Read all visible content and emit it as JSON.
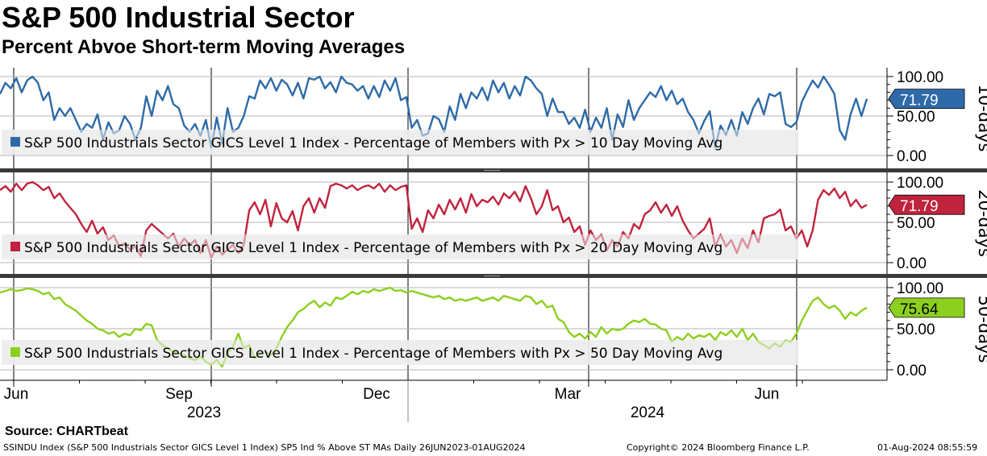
{
  "title": "S&P 500 Industrial Sector",
  "subtitle": "Percent Abvoe Short-term Moving Averages",
  "source": "Source: CHARTbeat",
  "footer": {
    "left": "SSINDU Index (S&P 500 Industrials Sector GICS Level 1 Index) SP5 Ind % Above ST MAs  Daily 26JUN2023-01AUG2024",
    "center": "Copyright© 2024 Bloomberg Finance L.P.",
    "right": "01-Aug-2024 08:55:59"
  },
  "chart_data": {
    "type": "line",
    "x_axis": {
      "range": [
        "2023-06-26",
        "2024-08-01"
      ],
      "months": [
        "Jun",
        "Sep",
        "Dec",
        "Mar",
        "Jun"
      ],
      "years": [
        "2023",
        "2024"
      ]
    },
    "panels": [
      {
        "side_label": "10-days",
        "legend": "S&P 500 Industrials Sector GICS Level 1 Index - Percentage of Members with Px > 10 Day Moving Avg",
        "color": "#2e6aa8",
        "last_value": "71.79",
        "ylim": [
          -5,
          105
        ],
        "yticks": [
          "100.00",
          "50.00",
          "0.00"
        ],
        "values": [
          78,
          92,
          85,
          98,
          80,
          95,
          100,
          92,
          70,
          80,
          45,
          60,
          50,
          60,
          45,
          30,
          40,
          35,
          52,
          20,
          42,
          28,
          32,
          50,
          40,
          20,
          35,
          75,
          50,
          82,
          70,
          88,
          65,
          60,
          38,
          30,
          40,
          25,
          45,
          10,
          48,
          15,
          60,
          30,
          35,
          50,
          75,
          72,
          95,
          85,
          98,
          82,
          96,
          90,
          76,
          92,
          72,
          98,
          96,
          100,
          85,
          93,
          80,
          100,
          92,
          90,
          82,
          88,
          72,
          88,
          74,
          95,
          82,
          98,
          70,
          74,
          35,
          45,
          25,
          28,
          50,
          46,
          30,
          62,
          45,
          78,
          60,
          80,
          72,
          86,
          70,
          95,
          80,
          92,
          72,
          88,
          76,
          100,
          95,
          85,
          78,
          50,
          72,
          55,
          55,
          40,
          48,
          35,
          58,
          30,
          48,
          35,
          60,
          20,
          52,
          36,
          70,
          45,
          60,
          70,
          80,
          74,
          88,
          70,
          82,
          65,
          72,
          55,
          45,
          28,
          44,
          56,
          10,
          38,
          26,
          45,
          25,
          55,
          40,
          60,
          72,
          52,
          78,
          75,
          80,
          40,
          36,
          42,
          68,
          82,
          95,
          86,
          100,
          90,
          78,
          32,
          20,
          52,
          72,
          50,
          71.79
        ]
      },
      {
        "side_label": "20-days",
        "legend": "S&P 500 Industrials Sector GICS Level 1 Index - Percentage of Members with Px > 20 Day Moving Avg",
        "color": "#c0233d",
        "last_value": "71.79",
        "ylim": [
          -5,
          105
        ],
        "yticks": [
          "100.00",
          "50.00",
          "0.00"
        ],
        "values": [
          90,
          95,
          88,
          98,
          90,
          98,
          100,
          96,
          90,
          94,
          80,
          86,
          76,
          68,
          60,
          48,
          38,
          52,
          36,
          44,
          28,
          34,
          20,
          24,
          16,
          20,
          8,
          40,
          48,
          42,
          36,
          30,
          36,
          20,
          30,
          22,
          28,
          12,
          28,
          6,
          20,
          10,
          16,
          22,
          12,
          22,
          65,
          75,
          60,
          78,
          45,
          74,
          55,
          50,
          64,
          40,
          70,
          80,
          62,
          80,
          68,
          95,
          98,
          96,
          92,
          96,
          90,
          94,
          96,
          92,
          98,
          88,
          96,
          90,
          94,
          96,
          42,
          55,
          38,
          65,
          55,
          72,
          60,
          78,
          66,
          80,
          62,
          85,
          70,
          78,
          75,
          82,
          72,
          86,
          80,
          88,
          76,
          95,
          80,
          60,
          70,
          90,
          65,
          70,
          50,
          56,
          38,
          45,
          22,
          40,
          28,
          35,
          15,
          28,
          20,
          38,
          30,
          48,
          42,
          60,
          65,
          75,
          62,
          72,
          58,
          70,
          52,
          40,
          30,
          36,
          42,
          55,
          20,
          35,
          20,
          28,
          12,
          30,
          18,
          40,
          25,
          55,
          58,
          60,
          66,
          40,
          45,
          30,
          40,
          20,
          40,
          78,
          90,
          84,
          92,
          80,
          88,
          70,
          78,
          68,
          71.79
        ]
      },
      {
        "side_label": "50-days",
        "legend": "S&P 500 Industrials Sector GICS Level 1 Index - Percentage of Members with Px > 50 Day Moving Avg",
        "color": "#8ccf1e",
        "last_value": "75.64",
        "ylim": [
          -5,
          105
        ],
        "yticks": [
          "100.00",
          "50.00",
          "0.00"
        ],
        "values": [
          94,
          96,
          98,
          96,
          97,
          99,
          98,
          96,
          92,
          94,
          86,
          88,
          80,
          76,
          72,
          66,
          60,
          56,
          50,
          48,
          44,
          46,
          40,
          44,
          42,
          50,
          48,
          56,
          54,
          36,
          30,
          26,
          22,
          20,
          18,
          14,
          12,
          16,
          10,
          6,
          12,
          4,
          20,
          28,
          44,
          26,
          30,
          14,
          20,
          22,
          18,
          26,
          40,
          52,
          60,
          70,
          74,
          80,
          84,
          76,
          82,
          78,
          88,
          86,
          90,
          95,
          92,
          96,
          94,
          98,
          96,
          98,
          100,
          96,
          97,
          94,
          96,
          94,
          92,
          90,
          88,
          90,
          86,
          88,
          84,
          86,
          84,
          86,
          88,
          84,
          86,
          88,
          84,
          90,
          88,
          86,
          84,
          90,
          88,
          80,
          84,
          76,
          78,
          62,
          58,
          46,
          40,
          44,
          38,
          46,
          40,
          52,
          44,
          50,
          48,
          50,
          56,
          60,
          58,
          62,
          56,
          55,
          50,
          48,
          34,
          40,
          36,
          44,
          38,
          42,
          40,
          44,
          36,
          46,
          42,
          48,
          40,
          50,
          36,
          44,
          34,
          30,
          26,
          32,
          28,
          36,
          34,
          44,
          60,
          72,
          84,
          88,
          80,
          75,
          78,
          72,
          62,
          70,
          66,
          72,
          75.64
        ]
      }
    ]
  }
}
